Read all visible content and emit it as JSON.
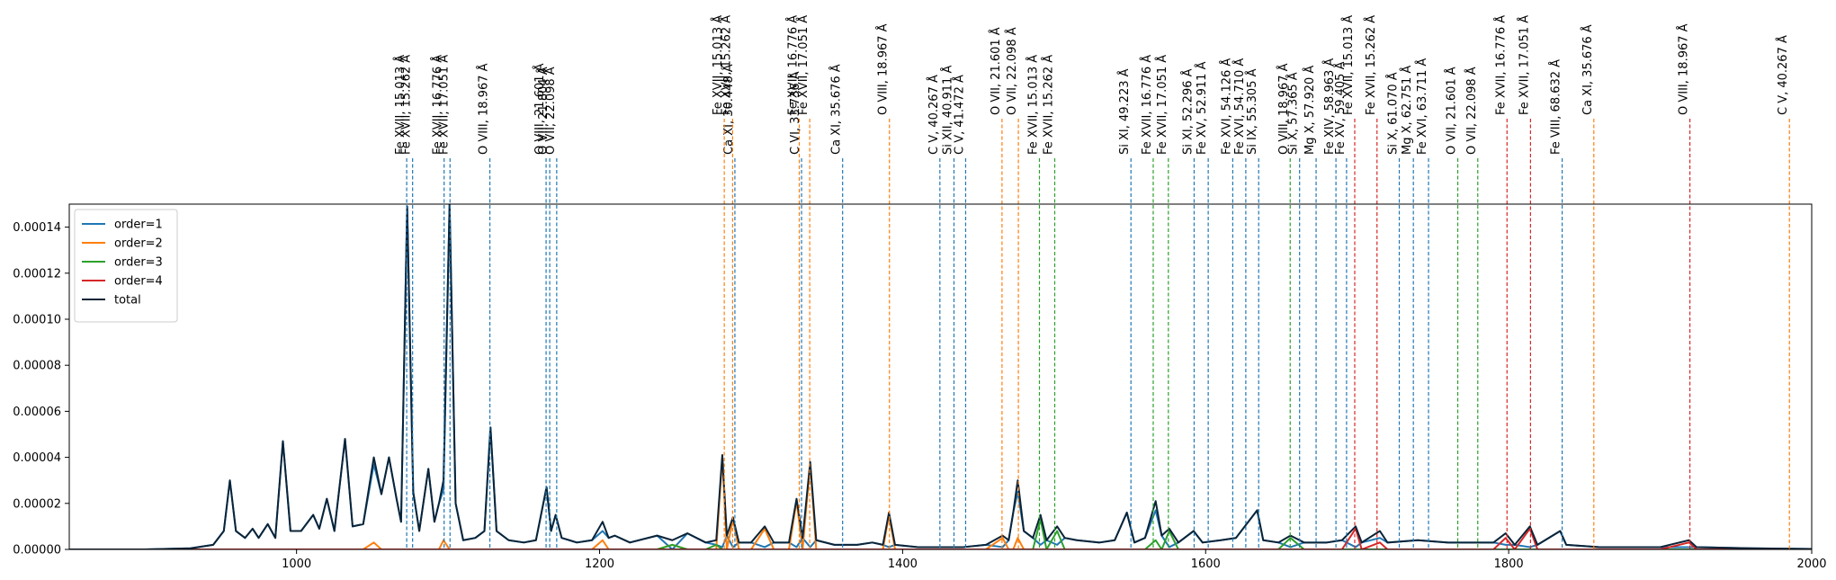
{
  "chart_data": {
    "type": "line",
    "xlim": [
      850,
      2000
    ],
    "ylim": [
      0,
      0.00015
    ],
    "xticks": [
      1000,
      1200,
      1400,
      1600,
      1800,
      2000
    ],
    "yticks": [
      {
        "value": 0,
        "label": "0.00000"
      },
      {
        "value": 2e-05,
        "label": "0.00002"
      },
      {
        "value": 4e-05,
        "label": "0.00004"
      },
      {
        "value": 6e-05,
        "label": "0.00006"
      },
      {
        "value": 8e-05,
        "label": "0.00008"
      },
      {
        "value": 0.0001,
        "label": "0.00010"
      },
      {
        "value": 0.00012,
        "label": "0.00012"
      },
      {
        "value": 0.00014,
        "label": "0.00014"
      }
    ],
    "legend": "upper left",
    "x": [
      850,
      900,
      930,
      945,
      952,
      956,
      960,
      966,
      971,
      975,
      981,
      986,
      991,
      996,
      1003,
      1011,
      1015,
      1020,
      1025,
      1032,
      1037,
      1044,
      1051,
      1056,
      1061,
      1066,
      1069,
      1073,
      1077,
      1081,
      1087,
      1091,
      1094,
      1097,
      1101,
      1105,
      1110,
      1118,
      1124,
      1128,
      1132,
      1140,
      1150,
      1158,
      1165,
      1168,
      1171,
      1175,
      1185,
      1195,
      1202,
      1206,
      1210,
      1220,
      1238,
      1248,
      1258,
      1270,
      1277,
      1281,
      1284,
      1288,
      1292,
      1300,
      1309,
      1315,
      1325,
      1330,
      1334,
      1339,
      1343,
      1355,
      1370,
      1380,
      1387,
      1391,
      1395,
      1410,
      1440,
      1455,
      1466,
      1470,
      1473,
      1476,
      1480,
      1486,
      1491,
      1495,
      1502,
      1507,
      1515,
      1530,
      1540,
      1548,
      1553,
      1560,
      1567,
      1571,
      1576,
      1582,
      1592,
      1598,
      1610,
      1620,
      1634,
      1638,
      1648,
      1656,
      1665,
      1680,
      1690,
      1699,
      1703,
      1715,
      1720,
      1740,
      1760,
      1780,
      1790,
      1798,
      1804,
      1814,
      1819,
      1834,
      1838,
      1860,
      1900,
      1919,
      1924,
      1960,
      2000
    ],
    "series": [
      {
        "name": "order=1",
        "color": "#1f77b4",
        "values": [
          0,
          0,
          5e-07,
          2e-06,
          8e-06,
          3e-05,
          8e-06,
          5e-06,
          9e-06,
          5e-06,
          1.1e-05,
          5e-06,
          4.7e-05,
          8e-06,
          8e-06,
          1.5e-05,
          9e-06,
          2.2e-05,
          8e-06,
          4.8e-05,
          1e-05,
          1.1e-05,
          3.7e-05,
          2.4e-05,
          4e-05,
          2.2e-05,
          1.2e-05,
          0.000149,
          2.5e-05,
          8e-06,
          3.5e-05,
          1.2e-05,
          2e-05,
          2.6e-05,
          0.00015,
          2e-05,
          4e-06,
          5e-06,
          8e-06,
          5.3e-05,
          8e-06,
          4e-06,
          3e-06,
          4e-06,
          2.7e-05,
          8e-06,
          1.5e-05,
          5e-06,
          3e-06,
          4e-06,
          8e-06,
          5e-06,
          6e-06,
          3e-06,
          6e-06,
          0,
          7e-06,
          3e-06,
          2e-06,
          1e-06,
          6e-06,
          1e-06,
          3e-06,
          3e-06,
          1e-06,
          3e-06,
          3e-06,
          1e-06,
          5e-06,
          1e-06,
          4e-06,
          2e-06,
          2e-06,
          3e-06,
          2e-06,
          1e-06,
          2e-06,
          1e-06,
          1e-06,
          2e-06,
          1e-06,
          4e-06,
          1.6e-05,
          2.5e-05,
          8e-06,
          5e-06,
          2e-06,
          4e-06,
          2e-06,
          5e-06,
          4e-06,
          3e-06,
          4e-06,
          1.6e-05,
          3e-06,
          5e-06,
          1.7e-05,
          6e-06,
          1e-06,
          3e-06,
          8e-06,
          3e-06,
          4e-06,
          5e-06,
          1.7e-05,
          4e-06,
          3e-06,
          1e-06,
          3e-06,
          3e-06,
          4e-06,
          1e-06,
          3e-06,
          5e-06,
          3e-06,
          4e-06,
          3e-06,
          3e-06,
          3e-06,
          2e-06,
          2e-06,
          1e-06,
          2e-06,
          8e-06,
          2e-06,
          1e-06,
          1e-06,
          1e-06,
          1e-06,
          5e-07,
          2e-07
        ],
        "markers": [
          {
            "x": 1072.7,
            "label": "Fe XVII, 15.013 Å"
          },
          {
            "x": 1076.6,
            "label": "Fe XVII, 15.262 Å"
          },
          {
            "x": 1097.4,
            "label": "Fe XVII, 16.776 Å"
          },
          {
            "x": 1101.3,
            "label": "Fe XVII, 17.051 Å"
          },
          {
            "x": 1127.6,
            "label": "O VIII, 18.967 Å"
          },
          {
            "x": 1164.7,
            "label": "O VIII, 21.601 Å"
          },
          {
            "x": 1167.1,
            "label": "O VII, 21.804 Å"
          },
          {
            "x": 1171.7,
            "label": "O VII, 22.098 Å"
          },
          {
            "x": 1289.3,
            "label": "Ca XI, 30.448 Å"
          },
          {
            "x": 1333.3,
            "label": "C VI, 33.736 Å"
          },
          {
            "x": 1360.4,
            "label": "Ca XI, 35.676 Å"
          },
          {
            "x": 1424.6,
            "label": "C V, 40.267 Å"
          },
          {
            "x": 1433.9,
            "label": "Si XII, 40.911 Å"
          },
          {
            "x": 1441.6,
            "label": "C V, 41.472 Å"
          },
          {
            "x": 1550.7,
            "label": "Si XI, 49.223 Å"
          },
          {
            "x": 1592.4,
            "label": "Si XI, 52.296 Å"
          },
          {
            "x": 1601.7,
            "label": "Fe XV, 52.911 Å"
          },
          {
            "x": 1617.9,
            "label": "Fe XVI, 54.126 Å"
          },
          {
            "x": 1626.5,
            "label": "Fe XVI, 54.710 Å"
          },
          {
            "x": 1635.0,
            "label": "Si IX, 55.305 Å"
          },
          {
            "x": 1662.0,
            "label": "Si X, 57.365 Å"
          },
          {
            "x": 1672.9,
            "label": "Mg X, 57.920 Å"
          },
          {
            "x": 1686.0,
            "label": "Fe XIV, 58.963 Å"
          },
          {
            "x": 1693.0,
            "label": "Fe XV, 59.405 Å"
          },
          {
            "x": 1727.8,
            "label": "Si X, 61.070 Å"
          },
          {
            "x": 1737.1,
            "label": "Mg X, 62.751 Å"
          },
          {
            "x": 1747.1,
            "label": "Fe XVI, 63.711 Å"
          },
          {
            "x": 1835.3,
            "label": "Fe VIII, 68.632 Å"
          }
        ]
      },
      {
        "name": "order=2",
        "color": "#ff7f0e",
        "values": [
          0,
          0,
          0,
          0,
          0,
          0,
          0,
          0,
          0,
          0,
          0,
          0,
          0,
          0,
          0,
          0,
          0,
          0,
          0,
          0,
          0,
          0,
          3e-06,
          0,
          0,
          0,
          0,
          0,
          0,
          0,
          0,
          0,
          0,
          4e-06,
          0,
          0,
          0,
          0,
          0,
          0,
          0,
          0,
          0,
          0,
          0,
          0,
          0,
          0,
          0,
          0,
          4e-06,
          0,
          0,
          0,
          0,
          2e-06,
          0,
          0,
          0,
          4e-05,
          0,
          1.3e-05,
          0,
          0,
          9e-06,
          0,
          0,
          2.1e-05,
          0,
          3.7e-05,
          0,
          0,
          0,
          0,
          0,
          1.5e-05,
          0,
          0,
          0,
          0,
          5e-06,
          0,
          0,
          5e-06,
          0,
          0,
          0,
          0,
          0,
          0,
          0,
          0,
          0,
          0,
          0,
          0,
          0,
          0,
          0,
          0,
          0,
          0,
          0,
          0,
          0,
          0,
          0,
          0,
          0,
          0,
          0,
          0,
          0,
          0,
          0,
          0,
          0,
          0,
          0,
          0,
          0,
          0,
          0,
          0,
          0,
          0,
          0,
          0,
          0,
          0,
          0
        ],
        "markers": [
          {
            "x": 1282.3,
            "label": "Fe XVII, 15.013 Å"
          },
          {
            "x": 1287.8,
            "label": "Fe XVII, 15.262 Å"
          },
          {
            "x": 1331.8,
            "label": "Fe XVII, 16.776 Å"
          },
          {
            "x": 1338.7,
            "label": "Fe XVII, 17.051 Å"
          },
          {
            "x": 1391.3,
            "label": "O VIII, 18.967 Å"
          },
          {
            "x": 1465.6,
            "label": "O VII, 21.601 Å"
          },
          {
            "x": 1476.4,
            "label": "O VII, 22.098 Å"
          },
          {
            "x": 1856.2,
            "label": "Ca XI, 35.676 Å"
          },
          {
            "x": 1985.3,
            "label": "C V, 40.267 Å"
          }
        ]
      },
      {
        "name": "order=3",
        "color": "#2ca02c",
        "values": [
          0,
          0,
          0,
          0,
          0,
          0,
          0,
          0,
          0,
          0,
          0,
          0,
          0,
          0,
          0,
          0,
          0,
          0,
          0,
          0,
          0,
          0,
          0,
          0,
          0,
          0,
          0,
          0,
          0,
          0,
          0,
          0,
          0,
          0,
          0,
          0,
          0,
          0,
          0,
          0,
          0,
          0,
          0,
          0,
          0,
          0,
          0,
          0,
          0,
          0,
          0,
          0,
          0,
          0,
          0,
          2e-06,
          0,
          0,
          2e-06,
          0,
          0,
          0,
          0,
          0,
          0,
          0,
          0,
          0,
          0,
          0,
          0,
          0,
          0,
          0,
          0,
          0,
          0,
          0,
          0,
          0,
          0,
          0,
          0,
          0,
          0,
          0,
          1.3e-05,
          0,
          8e-06,
          0,
          0,
          0,
          0,
          0,
          0,
          0,
          4e-06,
          0,
          8e-06,
          0,
          0,
          0,
          0,
          0,
          0,
          0,
          0,
          5e-06,
          0,
          0,
          0,
          0,
          0,
          0,
          0,
          0,
          0,
          0,
          0,
          0,
          0,
          0,
          0,
          0,
          0,
          0,
          0,
          0,
          0,
          0,
          0
        ],
        "markers": [
          {
            "x": 1490.3,
            "label": "Fe XVII, 15.013 Å"
          },
          {
            "x": 1500.4,
            "label": "Fe XVII, 15.262 Å"
          },
          {
            "x": 1565.4,
            "label": "Fe XVII, 16.776 Å"
          },
          {
            "x": 1575.4,
            "label": "Fe XVII, 17.051 Å"
          },
          {
            "x": 1655.8,
            "label": "O VIII, 18.967 Å"
          },
          {
            "x": 1766.4,
            "label": "O VII, 21.601 Å"
          },
          {
            "x": 1779.6,
            "label": "O VII, 22.098 Å"
          }
        ]
      },
      {
        "name": "order=4",
        "color": "#d62728",
        "values": [
          0,
          0,
          0,
          0,
          0,
          0,
          0,
          0,
          0,
          0,
          0,
          0,
          0,
          0,
          0,
          0,
          0,
          0,
          0,
          0,
          0,
          0,
          0,
          0,
          0,
          0,
          0,
          0,
          0,
          0,
          0,
          0,
          0,
          0,
          0,
          0,
          0,
          0,
          0,
          0,
          0,
          0,
          0,
          0,
          0,
          0,
          0,
          0,
          0,
          0,
          0,
          0,
          0,
          0,
          0,
          0,
          0,
          0,
          0,
          0,
          0,
          0,
          0,
          0,
          0,
          0,
          0,
          0,
          0,
          0,
          0,
          0,
          0,
          0,
          0,
          0,
          0,
          0,
          0,
          0,
          0,
          0,
          0,
          0,
          0,
          0,
          0,
          0,
          0,
          0,
          0,
          0,
          0,
          0,
          0,
          0,
          0,
          0,
          0,
          0,
          0,
          0,
          0,
          0,
          0,
          0,
          0,
          0,
          0,
          0,
          0,
          9e-06,
          0,
          3e-06,
          0,
          0,
          0,
          0,
          0,
          5e-06,
          0,
          9e-06,
          0,
          0,
          0,
          0,
          0,
          3e-06,
          0,
          0,
          0
        ],
        "markers": [
          {
            "x": 1698.4,
            "label": "Fe XVII, 15.013 Å"
          },
          {
            "x": 1713.1,
            "label": "Fe XVII, 15.262 Å"
          },
          {
            "x": 1798.9,
            "label": "Fe XVII, 16.776 Å"
          },
          {
            "x": 1814.4,
            "label": "Fe XVII, 17.051 Å"
          },
          {
            "x": 1919.6,
            "label": "O VIII, 18.967 Å"
          }
        ]
      },
      {
        "name": "total",
        "color": "#0b2438",
        "values": [
          0,
          0,
          5e-07,
          2e-06,
          8e-06,
          3e-05,
          8e-06,
          5e-06,
          9e-06,
          5e-06,
          1.1e-05,
          5e-06,
          4.7e-05,
          8e-06,
          8e-06,
          1.5e-05,
          9e-06,
          2.2e-05,
          8e-06,
          4.8e-05,
          1e-05,
          1.1e-05,
          4e-05,
          2.4e-05,
          4e-05,
          2.2e-05,
          1.2e-05,
          0.000149,
          2.5e-05,
          8e-06,
          3.5e-05,
          1.2e-05,
          2e-05,
          3e-05,
          0.00015,
          2e-05,
          4e-06,
          5e-06,
          8e-06,
          5.3e-05,
          8e-06,
          4e-06,
          3e-06,
          4e-06,
          2.7e-05,
          8e-06,
          1.5e-05,
          5e-06,
          3e-06,
          4e-06,
          1.2e-05,
          5e-06,
          6e-06,
          3e-06,
          6e-06,
          4e-06,
          7e-06,
          3e-06,
          4e-06,
          4.1e-05,
          6e-06,
          1.4e-05,
          3e-06,
          3e-06,
          1e-05,
          3e-06,
          3e-06,
          2.2e-05,
          5e-06,
          3.8e-05,
          4e-06,
          2e-06,
          2e-06,
          3e-06,
          2e-06,
          1.6e-05,
          2e-06,
          1e-06,
          1e-06,
          2e-06,
          6e-06,
          4e-06,
          1.6e-05,
          3e-05,
          8e-06,
          5e-06,
          1.5e-05,
          4e-06,
          1e-05,
          5e-06,
          4e-06,
          3e-06,
          4e-06,
          1.6e-05,
          3e-06,
          5e-06,
          2.1e-05,
          6e-06,
          9e-06,
          3e-06,
          8e-06,
          3e-06,
          4e-06,
          5e-06,
          1.7e-05,
          4e-06,
          3e-06,
          6e-06,
          3e-06,
          3e-06,
          4e-06,
          1e-05,
          3e-06,
          8e-06,
          3e-06,
          4e-06,
          3e-06,
          3e-06,
          3e-06,
          7e-06,
          2e-06,
          1e-05,
          2e-06,
          8e-06,
          2e-06,
          1e-06,
          1e-06,
          4e-06,
          1e-06,
          5e-07,
          2e-07
        ]
      }
    ]
  }
}
